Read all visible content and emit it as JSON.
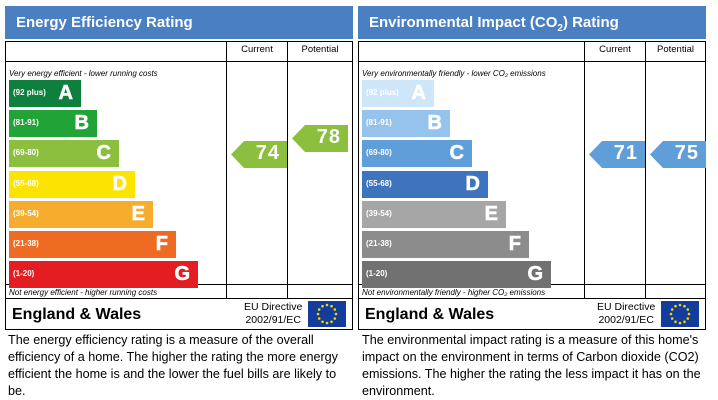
{
  "energy": {
    "title": "Energy Efficiency Rating",
    "col_current": "Current",
    "col_potential": "Potential",
    "top_note": "Very energy efficient - lower running costs",
    "bottom_note": "Not energy efficient - higher running costs",
    "bands": [
      {
        "range": "(92 plus)",
        "letter": "A",
        "color": "#0f7f3e"
      },
      {
        "range": "(81-91)",
        "letter": "B",
        "color": "#22a337"
      },
      {
        "range": "(69-80)",
        "letter": "C",
        "color": "#8dbf3f"
      },
      {
        "range": "(55-68)",
        "letter": "D",
        "color": "#fde400"
      },
      {
        "range": "(39-54)",
        "letter": "E",
        "color": "#f6ad2d"
      },
      {
        "range": "(21-38)",
        "letter": "F",
        "color": "#ee6b23"
      },
      {
        "range": "(1-20)",
        "letter": "G",
        "color": "#e31d22"
      }
    ],
    "current": {
      "value": "74",
      "color": "#8dbf3f"
    },
    "potential": {
      "value": "78",
      "color": "#8dbf3f"
    },
    "region": "England & Wales",
    "directive_line1": "EU Directive",
    "directive_line2": "2002/91/EC",
    "description": "The energy efficiency rating is a measure of the overall efficiency of a home. The higher the rating the more energy efficient the home is and the lower the fuel bills are likely to be."
  },
  "environment": {
    "title_part1": "Environmental Impact (CO",
    "title_sub": "2",
    "title_part2": ") Rating",
    "col_current": "Current",
    "col_potential": "Potential",
    "top_note": "Very environmentally friendly - lower CO₂ emissions",
    "bottom_note": "Not environmentally friendly - higher CO₂ emissions",
    "bands": [
      {
        "range": "(92 plus)",
        "letter": "A",
        "color": "#cfe6f8"
      },
      {
        "range": "(81-91)",
        "letter": "B",
        "color": "#96c3ec"
      },
      {
        "range": "(69-80)",
        "letter": "C",
        "color": "#5f9ed9"
      },
      {
        "range": "(55-68)",
        "letter": "D",
        "color": "#3d74bd"
      },
      {
        "range": "(39-54)",
        "letter": "E",
        "color": "#a6a6a6"
      },
      {
        "range": "(21-38)",
        "letter": "F",
        "color": "#8c8c8c"
      },
      {
        "range": "(1-20)",
        "letter": "G",
        "color": "#717171"
      }
    ],
    "current": {
      "value": "71",
      "color": "#5f9ed9"
    },
    "potential": {
      "value": "75",
      "color": "#5f9ed9"
    },
    "region": "England & Wales",
    "directive_line1": "EU Directive",
    "directive_line2": "2002/91/EC",
    "description": "The environmental impact rating is a measure of this home's impact on the environment in terms of Carbon dioxide (CO2) emissions. The higher the rating the less impact it has on the environment."
  }
}
